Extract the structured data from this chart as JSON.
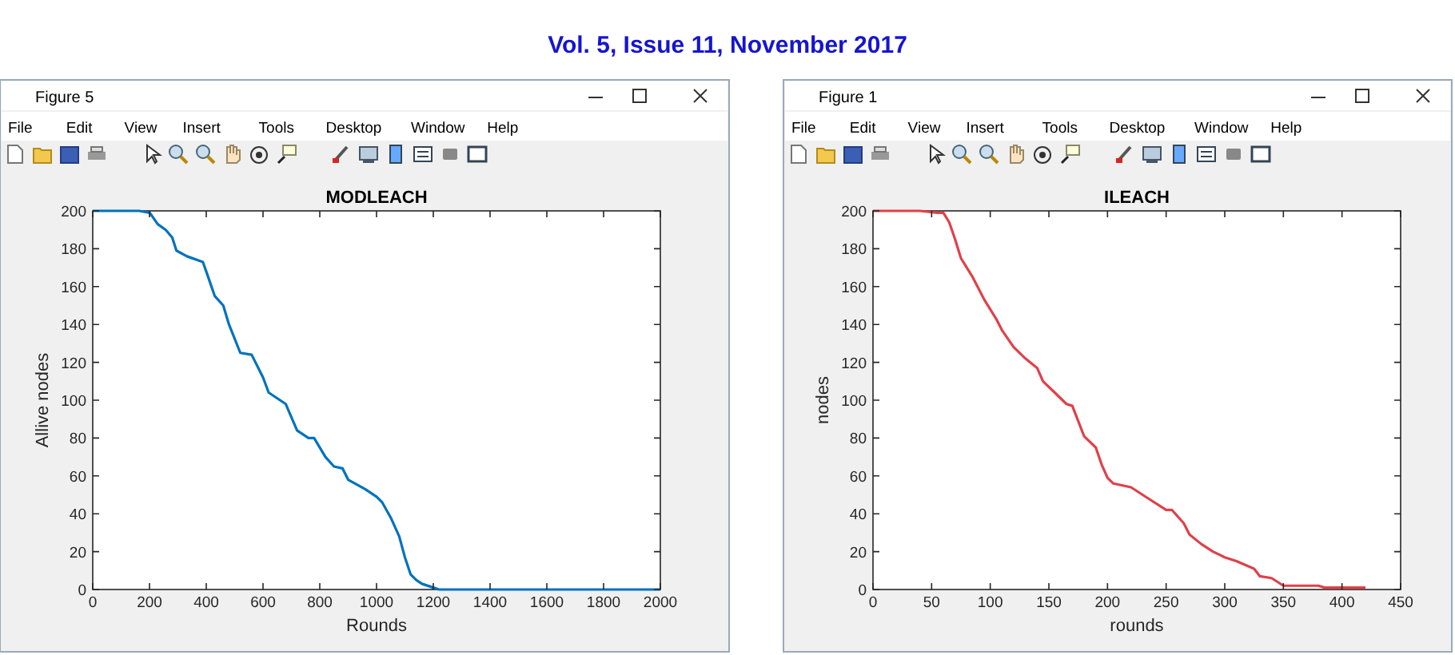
{
  "chart_data": [
    {
      "type": "line",
      "title": "MODLEACH",
      "xlabel": "Rounds",
      "ylabel": "Allive nodes",
      "color": "#0072bd",
      "x": [
        0,
        163,
        201,
        229,
        257,
        280,
        295,
        332,
        388,
        400,
        430,
        460,
        480,
        520,
        560,
        600,
        620,
        660,
        680,
        720,
        760,
        780,
        820,
        850,
        880,
        900,
        960,
        1000,
        1020,
        1050,
        1080,
        1100,
        1120,
        1140,
        1160,
        1200,
        1220,
        2000
      ],
      "values": [
        200,
        200,
        199,
        193,
        190,
        186,
        179,
        176,
        173,
        168,
        155,
        150,
        140,
        125,
        124,
        112,
        104,
        100,
        98,
        84,
        80,
        80,
        70,
        65,
        64,
        58,
        53,
        49,
        46,
        38,
        28,
        17,
        8,
        5,
        3,
        1,
        0,
        0
      ],
      "xlim": [
        0,
        2000
      ],
      "ylim": [
        0,
        200
      ],
      "xticks": [
        0,
        200,
        400,
        600,
        800,
        1000,
        1200,
        1400,
        1600,
        1800,
        2000
      ],
      "yticks": [
        0,
        20,
        40,
        60,
        80,
        100,
        120,
        140,
        160,
        180,
        200
      ],
      "annotations": [
        "Figure 5",
        "File",
        "Edit",
        "View",
        "Insert",
        "Tools",
        "Desktop",
        "Window",
        "Help",
        "Vol. 5, Issue 11, November 2017"
      ]
    },
    {
      "type": "line",
      "title": "ILEACH",
      "xlabel": "rounds",
      "ylabel": "nodes",
      "color": "#e0404a",
      "x": [
        0,
        40,
        55,
        60,
        65,
        70,
        75,
        85,
        95,
        105,
        110,
        120,
        130,
        140,
        145,
        155,
        165,
        170,
        180,
        185,
        190,
        195,
        200,
        205,
        220,
        225,
        235,
        250,
        255,
        265,
        270,
        280,
        290,
        300,
        310,
        325,
        330,
        340,
        350,
        355,
        380,
        385,
        420
      ],
      "values": [
        200,
        200,
        199,
        199,
        194,
        185,
        175,
        165,
        153,
        143,
        137,
        128,
        122,
        117,
        110,
        104,
        98,
        97,
        81,
        78,
        75,
        66,
        59,
        56,
        54,
        52,
        48,
        42,
        42,
        35,
        29,
        24,
        20,
        17,
        15,
        11,
        7,
        6,
        2,
        2,
        2,
        1,
        1
      ],
      "xlim": [
        0,
        450
      ],
      "ylim": [
        0,
        200
      ],
      "xticks": [
        0,
        50,
        100,
        150,
        200,
        250,
        300,
        350,
        400,
        450
      ],
      "yticks": [
        0,
        20,
        40,
        60,
        80,
        100,
        120,
        140,
        160,
        180,
        200
      ],
      "annotations": [
        "Figure 1",
        "File",
        "Edit",
        "View",
        "Insert",
        "Tools",
        "Desktop",
        "Window",
        "Help"
      ]
    }
  ]
}
